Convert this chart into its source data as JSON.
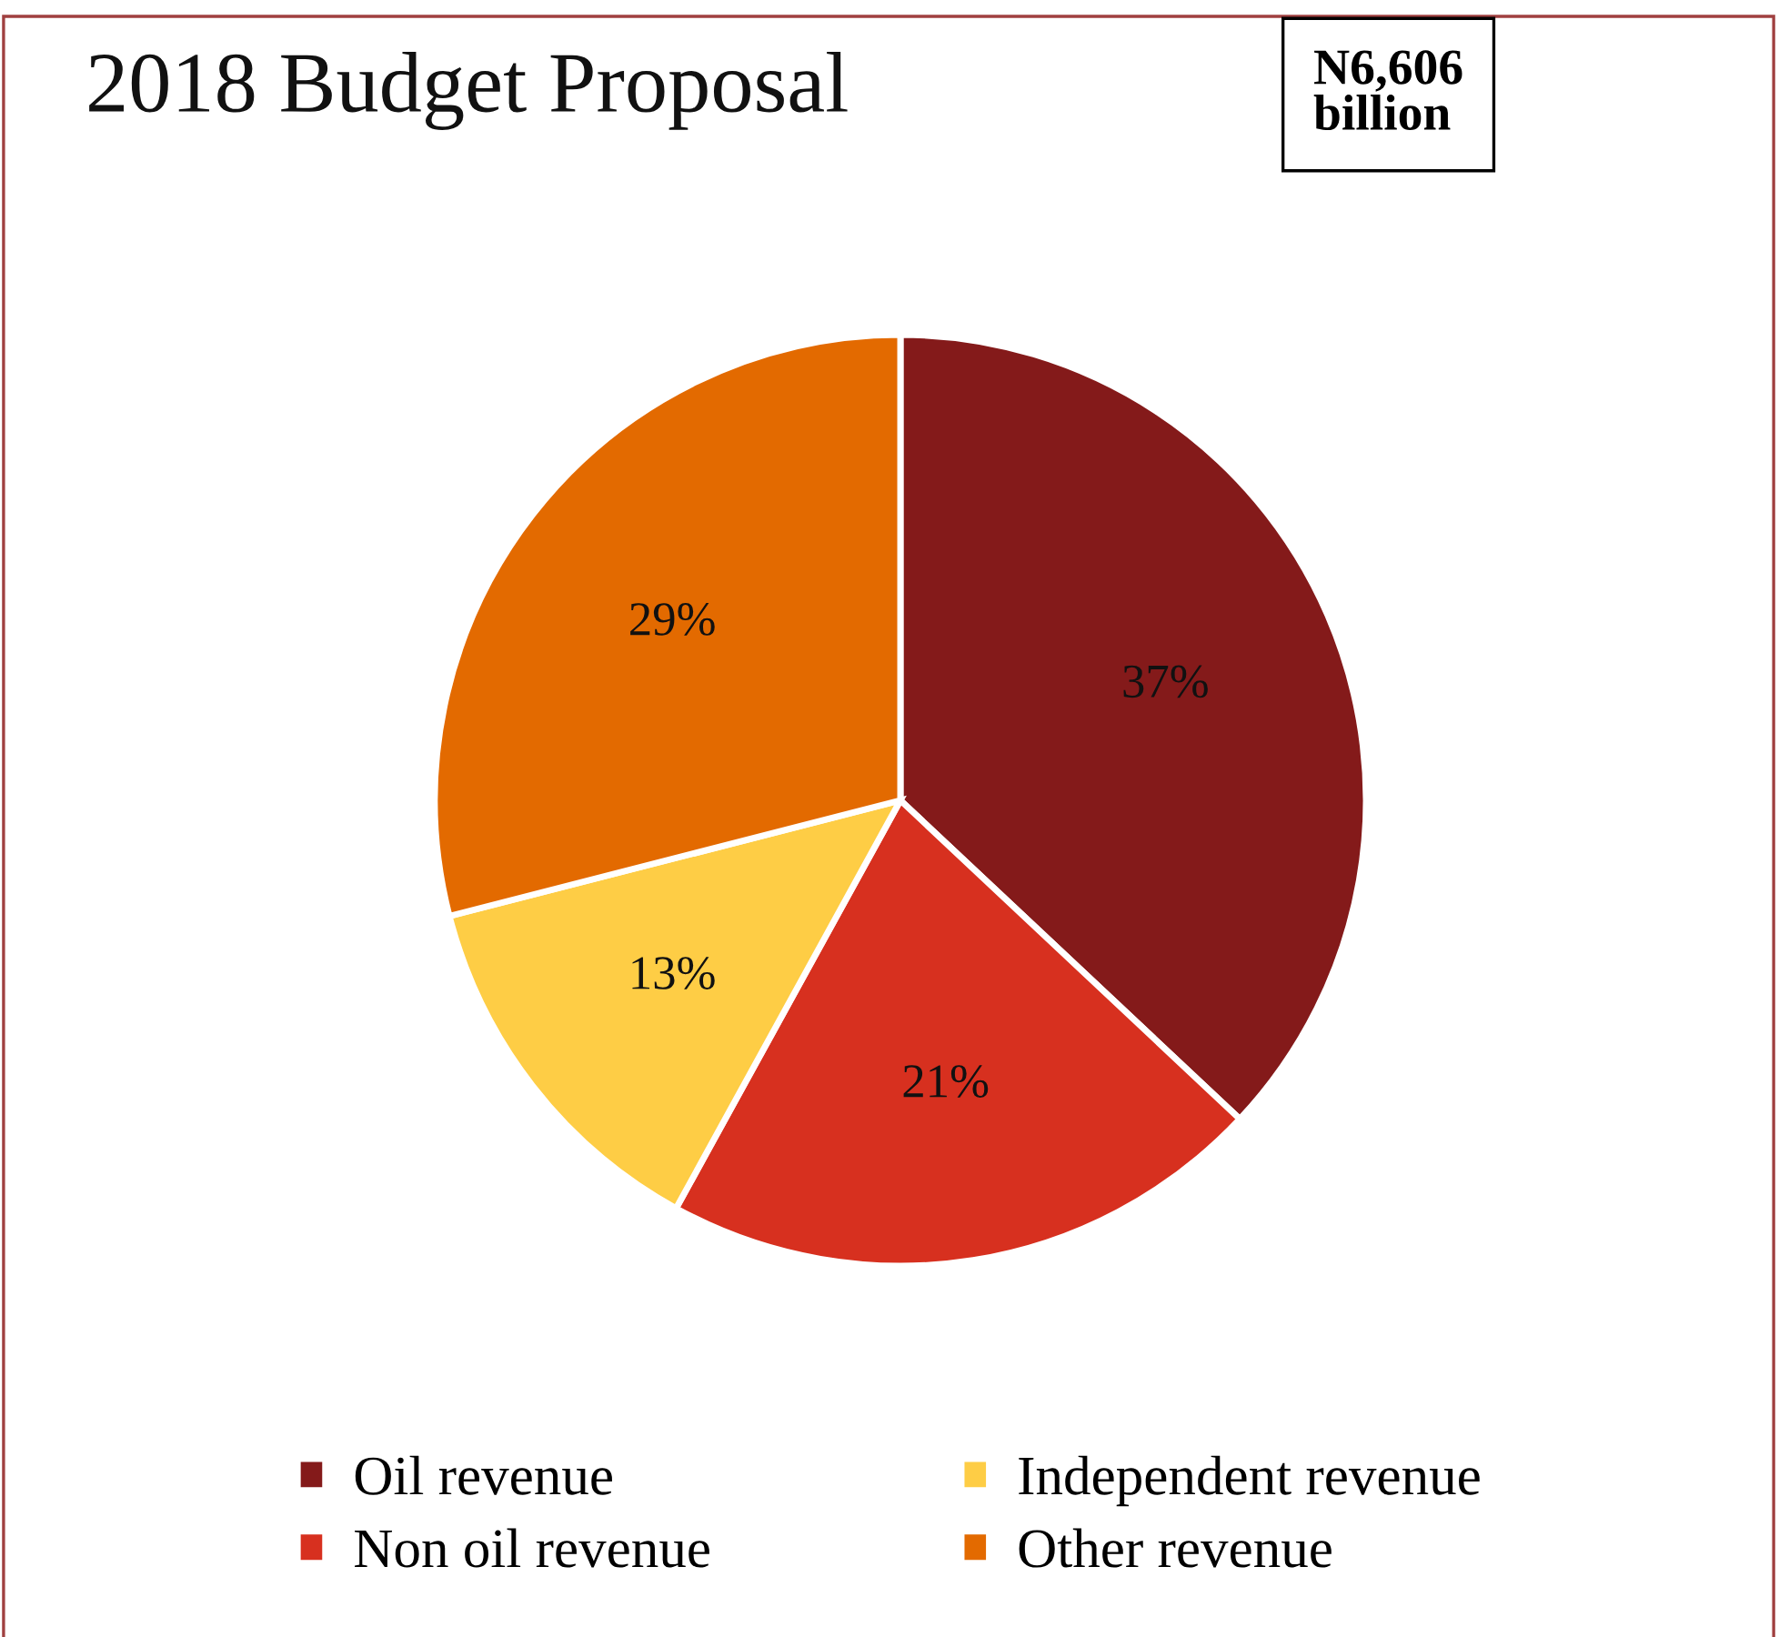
{
  "chart_data": {
    "type": "pie",
    "title": "2018 Budget Proposal",
    "categories": [
      "Oil revenue",
      "Non oil revenue",
      "Independent revenue",
      "Other revenue"
    ],
    "values": [
      37,
      21,
      13,
      29
    ],
    "colors": [
      "#841a1a",
      "#d7301f",
      "#fecd45",
      "#e36a00"
    ],
    "value_labels": [
      "37%",
      "21%",
      "13%",
      "29%"
    ],
    "annotations": [
      "N6,606\nbillion"
    ],
    "legend": "bottom"
  }
}
